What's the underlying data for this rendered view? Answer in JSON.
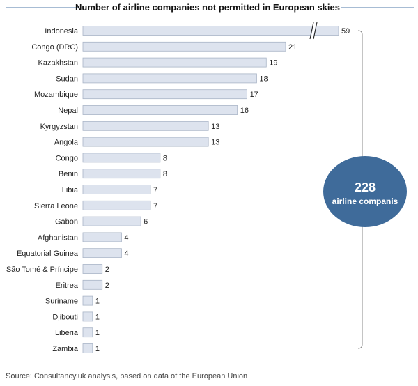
{
  "chart_data": {
    "type": "bar",
    "orientation": "horizontal",
    "title": "Number of airline companies not permitted in European skies",
    "categories": [
      "Indonesia",
      "Congo (DRC)",
      "Kazakhstan",
      "Sudan",
      "Mozambique",
      "Nepal",
      "Kyrgyzstan",
      "Angola",
      "Congo",
      "Benin",
      "Libia",
      "Sierra Leone",
      "Gabon",
      "Afghanistan",
      "Equatorial Guinea",
      "São Tomé & Príncipe",
      "Eritrea",
      "Suriname",
      "Djibouti",
      "Liberia",
      "Zambia"
    ],
    "values": [
      59,
      21,
      19,
      18,
      17,
      16,
      13,
      13,
      8,
      8,
      7,
      7,
      6,
      4,
      4,
      2,
      2,
      1,
      1,
      1,
      1
    ],
    "axis_break": "Indonesia",
    "bar_color": "#dde3ee",
    "bar_border": "#a9b4c6"
  },
  "callout": {
    "total": "228",
    "label": "airline companis",
    "color": "#3f6b9a"
  },
  "source": "Source: Consultancy.uk analysis, based on data of the European Union",
  "title_rule_color": "#4f7aa8"
}
